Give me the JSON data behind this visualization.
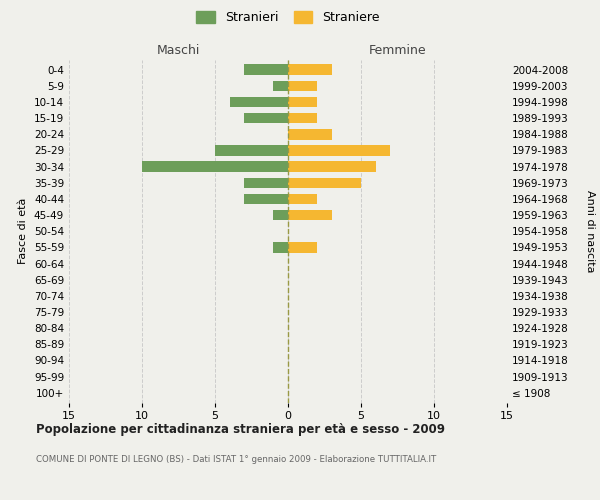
{
  "age_groups": [
    "0-4",
    "5-9",
    "10-14",
    "15-19",
    "20-24",
    "25-29",
    "30-34",
    "35-39",
    "40-44",
    "45-49",
    "50-54",
    "55-59",
    "60-64",
    "65-69",
    "70-74",
    "75-79",
    "80-84",
    "85-89",
    "90-94",
    "95-99",
    "100+"
  ],
  "birth_years": [
    "2004-2008",
    "1999-2003",
    "1994-1998",
    "1989-1993",
    "1984-1988",
    "1979-1983",
    "1974-1978",
    "1969-1973",
    "1964-1968",
    "1959-1963",
    "1954-1958",
    "1949-1953",
    "1944-1948",
    "1939-1943",
    "1934-1938",
    "1929-1933",
    "1924-1928",
    "1919-1923",
    "1914-1918",
    "1909-1913",
    "≤ 1908"
  ],
  "males": [
    3,
    1,
    4,
    3,
    0,
    5,
    10,
    3,
    3,
    1,
    0,
    1,
    0,
    0,
    0,
    0,
    0,
    0,
    0,
    0,
    0
  ],
  "females": [
    3,
    2,
    2,
    2,
    3,
    7,
    6,
    5,
    2,
    3,
    0,
    2,
    0,
    0,
    0,
    0,
    0,
    0,
    0,
    0,
    0
  ],
  "male_color": "#6d9e5a",
  "female_color": "#f5b731",
  "background_color": "#f0f0eb",
  "grid_color": "#cccccc",
  "title": "Popolazione per cittadinanza straniera per età e sesso - 2009",
  "subtitle": "COMUNE DI PONTE DI LEGNO (BS) - Dati ISTAT 1° gennaio 2009 - Elaborazione TUTTITALIA.IT",
  "ylabel_left": "Fasce di età",
  "ylabel_right": "Anni di nascita",
  "header_left": "Maschi",
  "header_right": "Femmine",
  "legend_male": "Stranieri",
  "legend_female": "Straniere",
  "xlim": 15
}
